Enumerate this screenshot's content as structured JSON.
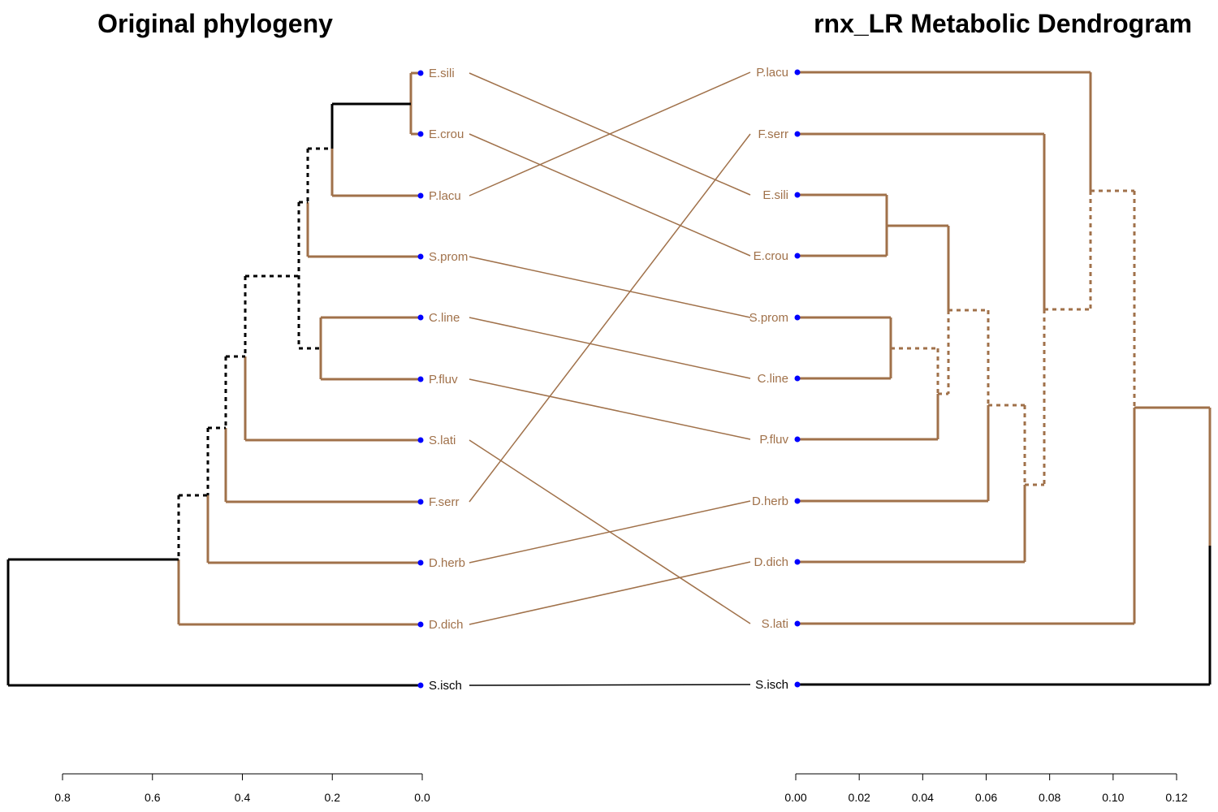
{
  "colors": {
    "branch": "#A0714A",
    "black": "#000000",
    "tip": "#0000FF"
  },
  "left": {
    "title": "Original phylogeny",
    "axis_ticks": [
      "0.8",
      "0.6",
      "0.4",
      "0.2",
      "0.0"
    ],
    "leaves": [
      "E.sili",
      "E.crou",
      "P.lacu",
      "S.prom",
      "C.line",
      "P.fluv",
      "S.lati",
      "F.serr",
      "D.herb",
      "D.dich",
      "S.isch"
    ]
  },
  "right": {
    "title": "rnx_LR Metabolic Dendrogram",
    "axis_ticks": [
      "0.00",
      "0.02",
      "0.04",
      "0.06",
      "0.08",
      "0.10",
      "0.12"
    ],
    "leaves": [
      "P.lacu",
      "F.serr",
      "E.sili",
      "E.crou",
      "S.prom",
      "C.line",
      "P.fluv",
      "D.herb",
      "D.dich",
      "S.lati",
      "S.isch"
    ]
  }
}
